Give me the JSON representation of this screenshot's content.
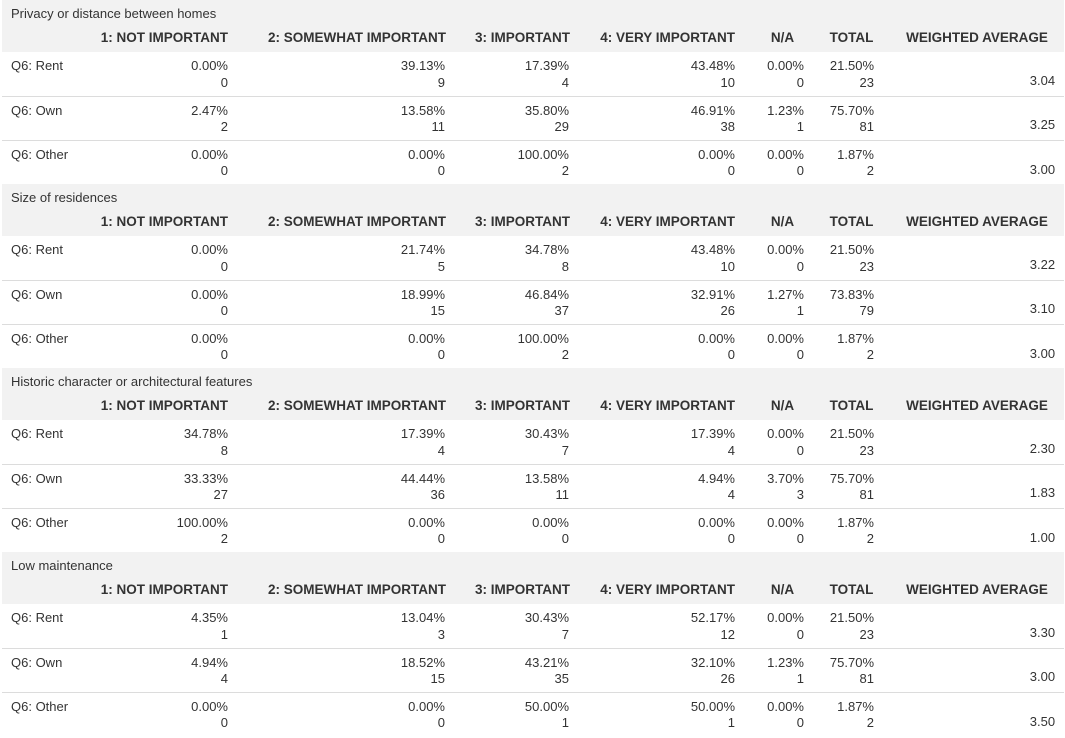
{
  "columns": [
    "1: NOT IMPORTANT",
    "2: SOMEWHAT IMPORTANT",
    "3: IMPORTANT",
    "4: VERY IMPORTANT",
    "N/A",
    "TOTAL",
    "WEIGHTED AVERAGE"
  ],
  "sections": [
    {
      "title": "Privacy or distance between homes",
      "rows": [
        {
          "label": "Q6: Rent",
          "cells": [
            {
              "pct": "0.00%",
              "n": "0"
            },
            {
              "pct": "39.13%",
              "n": "9"
            },
            {
              "pct": "17.39%",
              "n": "4"
            },
            {
              "pct": "43.48%",
              "n": "10"
            },
            {
              "pct": "0.00%",
              "n": "0"
            },
            {
              "pct": "21.50%",
              "n": "23"
            }
          ],
          "avg": "3.04"
        },
        {
          "label": "Q6: Own",
          "cells": [
            {
              "pct": "2.47%",
              "n": "2"
            },
            {
              "pct": "13.58%",
              "n": "11"
            },
            {
              "pct": "35.80%",
              "n": "29"
            },
            {
              "pct": "46.91%",
              "n": "38"
            },
            {
              "pct": "1.23%",
              "n": "1"
            },
            {
              "pct": "75.70%",
              "n": "81"
            }
          ],
          "avg": "3.25"
        },
        {
          "label": "Q6: Other",
          "cells": [
            {
              "pct": "0.00%",
              "n": "0"
            },
            {
              "pct": "0.00%",
              "n": "0"
            },
            {
              "pct": "100.00%",
              "n": "2"
            },
            {
              "pct": "0.00%",
              "n": "0"
            },
            {
              "pct": "0.00%",
              "n": "0"
            },
            {
              "pct": "1.87%",
              "n": "2"
            }
          ],
          "avg": "3.00"
        }
      ]
    },
    {
      "title": "Size of residences",
      "rows": [
        {
          "label": "Q6: Rent",
          "cells": [
            {
              "pct": "0.00%",
              "n": "0"
            },
            {
              "pct": "21.74%",
              "n": "5"
            },
            {
              "pct": "34.78%",
              "n": "8"
            },
            {
              "pct": "43.48%",
              "n": "10"
            },
            {
              "pct": "0.00%",
              "n": "0"
            },
            {
              "pct": "21.50%",
              "n": "23"
            }
          ],
          "avg": "3.22"
        },
        {
          "label": "Q6: Own",
          "cells": [
            {
              "pct": "0.00%",
              "n": "0"
            },
            {
              "pct": "18.99%",
              "n": "15"
            },
            {
              "pct": "46.84%",
              "n": "37"
            },
            {
              "pct": "32.91%",
              "n": "26"
            },
            {
              "pct": "1.27%",
              "n": "1"
            },
            {
              "pct": "73.83%",
              "n": "79"
            }
          ],
          "avg": "3.10"
        },
        {
          "label": "Q6: Other",
          "cells": [
            {
              "pct": "0.00%",
              "n": "0"
            },
            {
              "pct": "0.00%",
              "n": "0"
            },
            {
              "pct": "100.00%",
              "n": "2"
            },
            {
              "pct": "0.00%",
              "n": "0"
            },
            {
              "pct": "0.00%",
              "n": "0"
            },
            {
              "pct": "1.87%",
              "n": "2"
            }
          ],
          "avg": "3.00"
        }
      ]
    },
    {
      "title": "Historic character or architectural features",
      "rows": [
        {
          "label": "Q6: Rent",
          "cells": [
            {
              "pct": "34.78%",
              "n": "8"
            },
            {
              "pct": "17.39%",
              "n": "4"
            },
            {
              "pct": "30.43%",
              "n": "7"
            },
            {
              "pct": "17.39%",
              "n": "4"
            },
            {
              "pct": "0.00%",
              "n": "0"
            },
            {
              "pct": "21.50%",
              "n": "23"
            }
          ],
          "avg": "2.30"
        },
        {
          "label": "Q6: Own",
          "cells": [
            {
              "pct": "33.33%",
              "n": "27"
            },
            {
              "pct": "44.44%",
              "n": "36"
            },
            {
              "pct": "13.58%",
              "n": "11"
            },
            {
              "pct": "4.94%",
              "n": "4"
            },
            {
              "pct": "3.70%",
              "n": "3"
            },
            {
              "pct": "75.70%",
              "n": "81"
            }
          ],
          "avg": "1.83"
        },
        {
          "label": "Q6: Other",
          "cells": [
            {
              "pct": "100.00%",
              "n": "2"
            },
            {
              "pct": "0.00%",
              "n": "0"
            },
            {
              "pct": "0.00%",
              "n": "0"
            },
            {
              "pct": "0.00%",
              "n": "0"
            },
            {
              "pct": "0.00%",
              "n": "0"
            },
            {
              "pct": "1.87%",
              "n": "2"
            }
          ],
          "avg": "1.00"
        }
      ]
    },
    {
      "title": "Low maintenance",
      "rows": [
        {
          "label": "Q6: Rent",
          "cells": [
            {
              "pct": "4.35%",
              "n": "1"
            },
            {
              "pct": "13.04%",
              "n": "3"
            },
            {
              "pct": "30.43%",
              "n": "7"
            },
            {
              "pct": "52.17%",
              "n": "12"
            },
            {
              "pct": "0.00%",
              "n": "0"
            },
            {
              "pct": "21.50%",
              "n": "23"
            }
          ],
          "avg": "3.30"
        },
        {
          "label": "Q6: Own",
          "cells": [
            {
              "pct": "4.94%",
              "n": "4"
            },
            {
              "pct": "18.52%",
              "n": "15"
            },
            {
              "pct": "43.21%",
              "n": "35"
            },
            {
              "pct": "32.10%",
              "n": "26"
            },
            {
              "pct": "1.23%",
              "n": "1"
            },
            {
              "pct": "75.70%",
              "n": "81"
            }
          ],
          "avg": "3.00"
        },
        {
          "label": "Q6: Other",
          "cells": [
            {
              "pct": "0.00%",
              "n": "0"
            },
            {
              "pct": "0.00%",
              "n": "0"
            },
            {
              "pct": "50.00%",
              "n": "1"
            },
            {
              "pct": "50.00%",
              "n": "1"
            },
            {
              "pct": "0.00%",
              "n": "0"
            },
            {
              "pct": "1.87%",
              "n": "2"
            }
          ],
          "avg": "3.50"
        }
      ]
    }
  ]
}
